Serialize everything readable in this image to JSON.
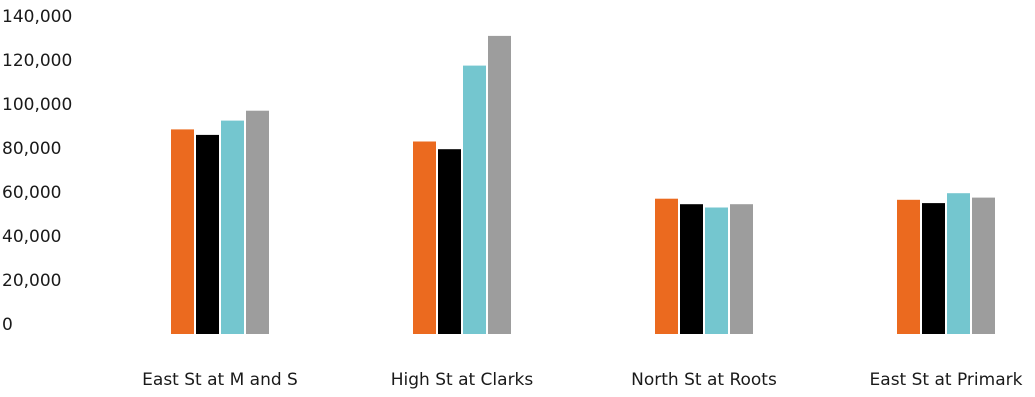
{
  "chart_data": {
    "type": "bar",
    "title": "",
    "xlabel": "",
    "ylabel": "",
    "ylim": [
      0,
      140000
    ],
    "y_ticks": [
      0,
      20000,
      40000,
      60000,
      80000,
      100000,
      120000,
      140000
    ],
    "y_tick_labels": [
      "0",
      "20,000",
      "40,000",
      "60,000",
      "80,000",
      "100,000",
      "120,000",
      "140,000"
    ],
    "grid": false,
    "legend": "none",
    "categories": [
      "East St at M and S",
      "High St at Clarks",
      "North St at Roots",
      "East St at Primark"
    ],
    "series": [
      {
        "color": "#eb6a1f",
        "values": [
          93000,
          87500,
          61500,
          61000
        ]
      },
      {
        "color": "#000000",
        "values": [
          90500,
          84000,
          59000,
          59500
        ]
      },
      {
        "color": "#74c6cf",
        "values": [
          97000,
          122000,
          57500,
          64000
        ]
      },
      {
        "color": "#9d9d9d",
        "values": [
          101500,
          135500,
          59000,
          62000
        ]
      }
    ]
  }
}
